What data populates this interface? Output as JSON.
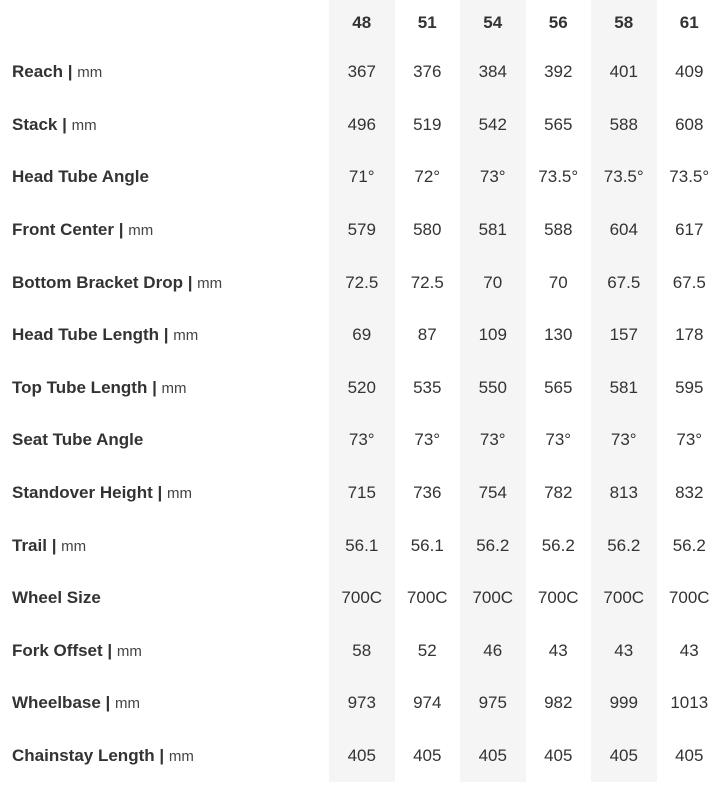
{
  "sizes": [
    "48",
    "51",
    "54",
    "56",
    "58",
    "61"
  ],
  "rows": [
    {
      "label": "Reach",
      "unit": "mm",
      "values": [
        "367",
        "376",
        "384",
        "392",
        "401",
        "409"
      ]
    },
    {
      "label": "Stack",
      "unit": "mm",
      "values": [
        "496",
        "519",
        "542",
        "565",
        "588",
        "608"
      ]
    },
    {
      "label": "Head Tube Angle",
      "unit": "",
      "values": [
        "71°",
        "72°",
        "73°",
        "73.5°",
        "73.5°",
        "73.5°"
      ]
    },
    {
      "label": "Front Center",
      "unit": "mm",
      "values": [
        "579",
        "580",
        "581",
        "588",
        "604",
        "617"
      ]
    },
    {
      "label": "Bottom Bracket Drop",
      "unit": "mm",
      "values": [
        "72.5",
        "72.5",
        "70",
        "70",
        "67.5",
        "67.5"
      ]
    },
    {
      "label": "Head Tube Length",
      "unit": "mm",
      "values": [
        "69",
        "87",
        "109",
        "130",
        "157",
        "178"
      ]
    },
    {
      "label": "Top Tube Length",
      "unit": "mm",
      "values": [
        "520",
        "535",
        "550",
        "565",
        "581",
        "595"
      ]
    },
    {
      "label": "Seat Tube Angle",
      "unit": "",
      "values": [
        "73°",
        "73°",
        "73°",
        "73°",
        "73°",
        "73°"
      ]
    },
    {
      "label": "Standover Height",
      "unit": "mm",
      "values": [
        "715",
        "736",
        "754",
        "782",
        "813",
        "832"
      ]
    },
    {
      "label": "Trail",
      "unit": "mm",
      "values": [
        "56.1",
        "56.1",
        "56.2",
        "56.2",
        "56.2",
        "56.2"
      ]
    },
    {
      "label": "Wheel Size",
      "unit": "",
      "values": [
        "700C",
        "700C",
        "700C",
        "700C",
        "700C",
        "700C"
      ]
    },
    {
      "label": "Fork Offset",
      "unit": "mm",
      "values": [
        "58",
        "52",
        "46",
        "43",
        "43",
        "43"
      ]
    },
    {
      "label": "Wheelbase",
      "unit": "mm",
      "values": [
        "973",
        "974",
        "975",
        "982",
        "999",
        "1013"
      ]
    },
    {
      "label": "Chainstay Length",
      "unit": "mm",
      "values": [
        "405",
        "405",
        "405",
        "405",
        "405",
        "405"
      ]
    }
  ],
  "colors": {
    "shade": "#f5f5f5",
    "text": "#333333"
  }
}
